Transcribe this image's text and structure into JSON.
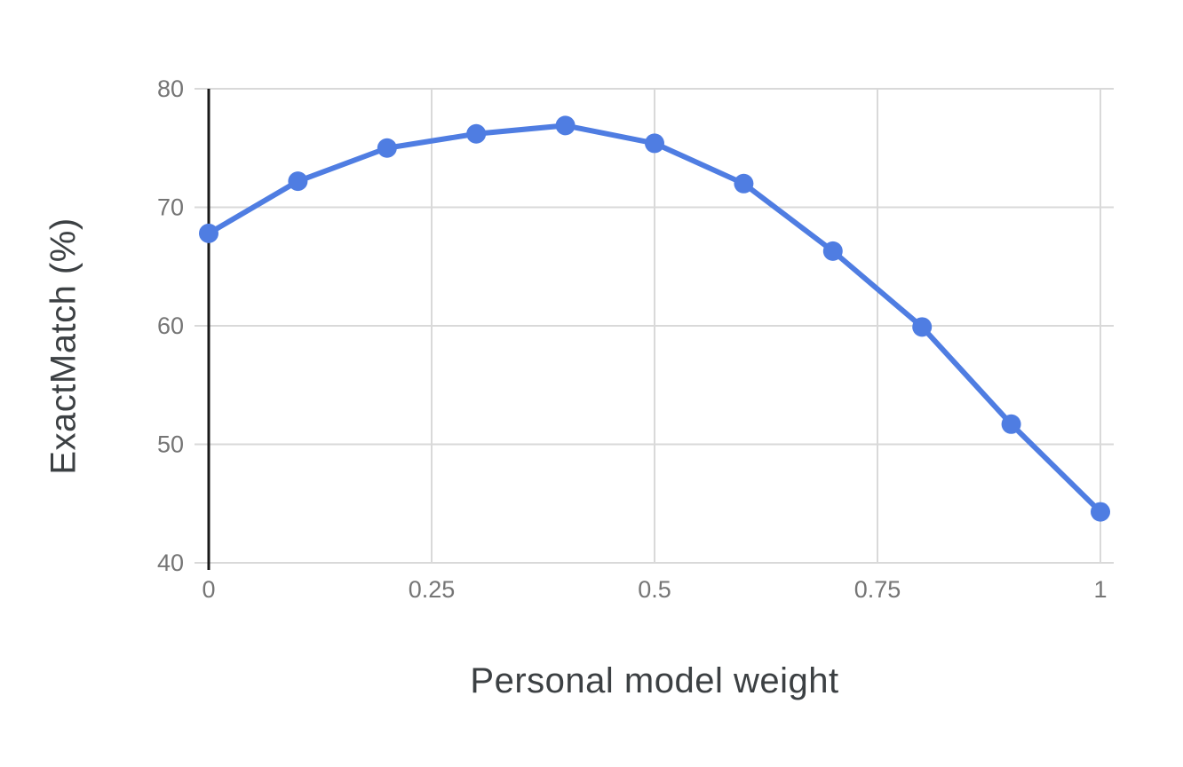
{
  "chart_data": {
    "type": "line",
    "title": "",
    "xlabel": "Personal model weight",
    "ylabel": "ExactMatch (%)",
    "x": [
      0,
      0.1,
      0.2,
      0.3,
      0.4,
      0.5,
      0.6,
      0.7,
      0.8,
      0.9,
      1.0
    ],
    "series": [
      {
        "name": "ExactMatch",
        "values": [
          67.8,
          72.2,
          75.0,
          76.2,
          76.9,
          75.4,
          72.0,
          66.3,
          59.9,
          51.7,
          44.3
        ]
      }
    ],
    "xlim": [
      0,
      1
    ],
    "ylim": [
      40,
      80
    ],
    "x_tick_values": [
      0,
      0.25,
      0.5,
      0.75,
      1
    ],
    "x_tick_labels": [
      "0",
      "0.25",
      "0.5",
      "0.75",
      "1"
    ],
    "y_tick_values": [
      40,
      50,
      60,
      70,
      80
    ],
    "y_tick_labels": [
      "40",
      "50",
      "60",
      "70",
      "80"
    ],
    "grid": true,
    "legend_position": "none",
    "marker": "circle",
    "colors": {
      "series": "#4f7de2",
      "gridline": "#d9d9d9",
      "axis_line": "#1a1a1a",
      "tick_text": "#757575",
      "title_text": "#3c4043",
      "background": "#ffffff"
    }
  }
}
